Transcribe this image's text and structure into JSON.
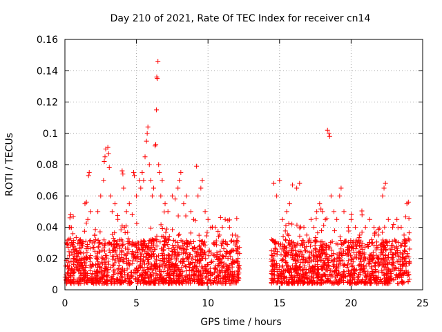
{
  "chart_data": {
    "type": "scatter",
    "title": "Day 210 of 2021, Rate Of TEC Index for receiver cn14",
    "xlabel": "GPS time / hours",
    "ylabel": "ROTI / TECUs",
    "xlim": [
      0,
      25
    ],
    "ylim": [
      0,
      0.16
    ],
    "x_ticks": [
      0,
      5,
      10,
      15,
      20,
      25
    ],
    "x_tick_labels": [
      "0",
      "5",
      "10",
      "15",
      "20",
      "25"
    ],
    "y_ticks": [
      0,
      0.02,
      0.04,
      0.06,
      0.08,
      0.1,
      0.12,
      0.14,
      0.16
    ],
    "y_tick_labels": [
      "0",
      "0.02",
      "0.04",
      "0.06",
      "0.08",
      "0.1",
      "0.12",
      "0.14",
      "0.16"
    ],
    "grid": true,
    "marker": "+",
    "point_color": "#ff0000",
    "data_gap_hours": [
      12.2,
      14.4
    ],
    "series": [
      {
        "name": "ROTI",
        "points": [
          [
            0.1,
            0.03
          ],
          [
            0.2,
            0.02
          ],
          [
            0.3,
            0.04
          ],
          [
            0.35,
            0.046
          ],
          [
            0.4,
            0.048
          ],
          [
            0.5,
            0.03
          ],
          [
            0.6,
            0.02
          ],
          [
            0.8,
            0.025
          ],
          [
            1.0,
            0.03
          ],
          [
            1.2,
            0.02
          ],
          [
            1.4,
            0.055
          ],
          [
            1.5,
            0.056
          ],
          [
            1.6,
            0.045
          ],
          [
            1.65,
            0.073
          ],
          [
            1.7,
            0.075
          ],
          [
            1.8,
            0.05
          ],
          [
            1.9,
            0.03
          ],
          [
            2.1,
            0.035
          ],
          [
            2.3,
            0.05
          ],
          [
            2.5,
            0.06
          ],
          [
            2.7,
            0.07
          ],
          [
            2.75,
            0.082
          ],
          [
            2.8,
            0.085
          ],
          [
            2.85,
            0.09
          ],
          [
            3.0,
            0.091
          ],
          [
            3.05,
            0.087
          ],
          [
            3.1,
            0.078
          ],
          [
            3.2,
            0.06
          ],
          [
            3.3,
            0.05
          ],
          [
            3.5,
            0.055
          ],
          [
            3.7,
            0.045
          ],
          [
            4.0,
            0.076
          ],
          [
            4.05,
            0.074
          ],
          [
            4.1,
            0.065
          ],
          [
            4.3,
            0.05
          ],
          [
            4.5,
            0.055
          ],
          [
            4.7,
            0.048
          ],
          [
            4.8,
            0.075
          ],
          [
            4.85,
            0.073
          ],
          [
            5.0,
            0.06
          ],
          [
            5.2,
            0.07
          ],
          [
            5.3,
            0.065
          ],
          [
            5.4,
            0.075
          ],
          [
            5.5,
            0.07
          ],
          [
            5.6,
            0.085
          ],
          [
            5.7,
            0.095
          ],
          [
            5.75,
            0.1
          ],
          [
            5.8,
            0.104
          ],
          [
            5.9,
            0.08
          ],
          [
            6.0,
            0.07
          ],
          [
            6.1,
            0.06
          ],
          [
            6.2,
            0.065
          ],
          [
            6.3,
            0.092
          ],
          [
            6.35,
            0.093
          ],
          [
            6.4,
            0.115
          ],
          [
            6.42,
            0.136
          ],
          [
            6.45,
            0.135
          ],
          [
            6.5,
            0.146
          ],
          [
            6.55,
            0.08
          ],
          [
            6.6,
            0.075
          ],
          [
            6.7,
            0.06
          ],
          [
            6.8,
            0.07
          ],
          [
            7.0,
            0.055
          ],
          [
            7.2,
            0.05
          ],
          [
            7.5,
            0.06
          ],
          [
            7.7,
            0.058
          ],
          [
            7.9,
            0.065
          ],
          [
            8.0,
            0.07
          ],
          [
            8.1,
            0.075
          ],
          [
            8.3,
            0.055
          ],
          [
            8.5,
            0.06
          ],
          [
            8.8,
            0.05
          ],
          [
            9.0,
            0.045
          ],
          [
            9.2,
            0.079
          ],
          [
            9.3,
            0.06
          ],
          [
            9.5,
            0.065
          ],
          [
            9.6,
            0.07
          ],
          [
            9.8,
            0.05
          ],
          [
            10.0,
            0.045
          ],
          [
            10.3,
            0.04
          ],
          [
            10.5,
            0.04
          ],
          [
            10.8,
            0.035
          ],
          [
            11.0,
            0.04
          ],
          [
            11.2,
            0.045
          ],
          [
            11.5,
            0.04
          ],
          [
            11.7,
            0.035
          ],
          [
            12.0,
            0.03
          ],
          [
            12.1,
            0.02
          ],
          [
            14.6,
            0.068
          ],
          [
            14.8,
            0.06
          ],
          [
            15.0,
            0.07
          ],
          [
            15.2,
            0.045
          ],
          [
            15.5,
            0.05
          ],
          [
            15.7,
            0.055
          ],
          [
            15.9,
            0.067
          ],
          [
            16.2,
            0.065
          ],
          [
            16.4,
            0.068
          ],
          [
            16.7,
            0.04
          ],
          [
            16.9,
            0.035
          ],
          [
            17.2,
            0.045
          ],
          [
            17.4,
            0.04
          ],
          [
            17.6,
            0.05
          ],
          [
            17.8,
            0.055
          ],
          [
            18.0,
            0.05
          ],
          [
            18.2,
            0.045
          ],
          [
            18.35,
            0.102
          ],
          [
            18.45,
            0.1
          ],
          [
            18.5,
            0.098
          ],
          [
            18.6,
            0.06
          ],
          [
            18.8,
            0.05
          ],
          [
            19.0,
            0.045
          ],
          [
            19.2,
            0.06
          ],
          [
            19.3,
            0.065
          ],
          [
            19.5,
            0.05
          ],
          [
            19.8,
            0.04
          ],
          [
            20.0,
            0.045
          ],
          [
            20.3,
            0.04
          ],
          [
            20.6,
            0.035
          ],
          [
            21.0,
            0.04
          ],
          [
            21.3,
            0.045
          ],
          [
            21.6,
            0.04
          ],
          [
            21.9,
            0.035
          ],
          [
            22.2,
            0.06
          ],
          [
            22.3,
            0.065
          ],
          [
            22.4,
            0.068
          ],
          [
            22.6,
            0.045
          ],
          [
            22.9,
            0.04
          ],
          [
            23.2,
            0.045
          ],
          [
            23.5,
            0.04
          ],
          [
            23.7,
            0.035
          ],
          [
            23.9,
            0.055
          ],
          [
            24.0,
            0.056
          ]
        ]
      }
    ]
  }
}
